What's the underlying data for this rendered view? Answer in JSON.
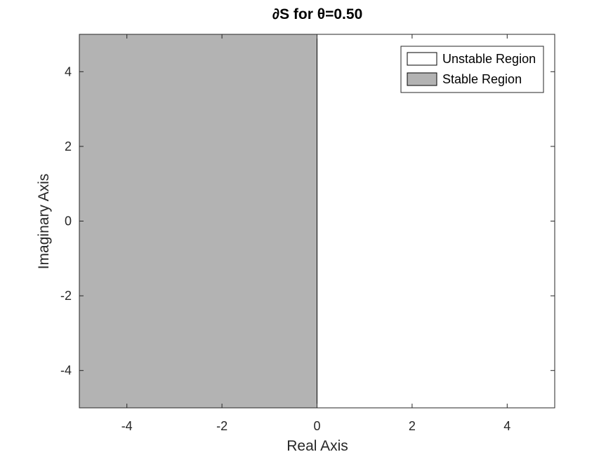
{
  "chart_data": {
    "type": "area",
    "title": "∂S  for θ=0.50",
    "xlabel": "Real Axis",
    "ylabel": "Imaginary Axis",
    "xlim": [
      -5,
      5
    ],
    "ylim": [
      -5,
      5
    ],
    "xticks": [
      -4,
      -2,
      0,
      2,
      4
    ],
    "yticks": [
      -4,
      -2,
      0,
      2,
      4
    ],
    "xtick_labels": [
      "-4",
      "-2",
      "0",
      "2",
      "4"
    ],
    "ytick_labels": [
      "-4",
      "-2",
      "0",
      "2",
      "4"
    ],
    "grid": false,
    "legend_position": "top-right",
    "regions": [
      {
        "name": "Unstable Region",
        "color": "#ffffff",
        "x_range": [
          0,
          5
        ],
        "y_range": [
          -5,
          5
        ]
      },
      {
        "name": "Stable Region",
        "color": "#b3b3b3",
        "x_range": [
          -5,
          0
        ],
        "y_range": [
          -5,
          5
        ]
      }
    ],
    "legend": [
      "Unstable Region",
      "Stable Region"
    ]
  }
}
